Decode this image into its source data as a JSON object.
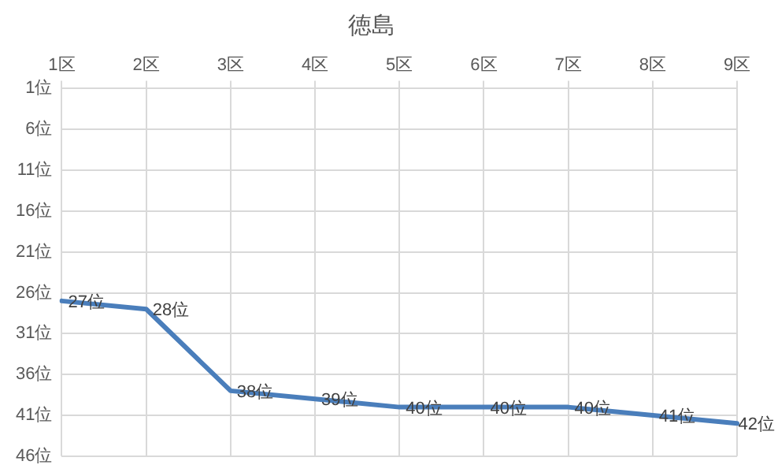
{
  "chart_data": {
    "type": "line",
    "title": "徳島",
    "categories": [
      "1区",
      "2区",
      "3区",
      "4区",
      "5区",
      "6区",
      "7区",
      "8区",
      "9区"
    ],
    "series": [
      {
        "color": "#4a7ebb",
        "values": [
          27,
          28,
          38,
          39,
          40,
          40,
          40,
          41,
          42
        ],
        "value_labels": [
          "27位",
          "28位",
          "38位",
          "39位",
          "40位",
          "40位",
          "40位",
          "41位",
          "42位"
        ]
      }
    ],
    "ylim": [
      46,
      1
    ],
    "yticks": [
      {
        "value": 1,
        "label": "1位"
      },
      {
        "value": 6,
        "label": "6位"
      },
      {
        "value": 11,
        "label": "11位"
      },
      {
        "value": 16,
        "label": "16位"
      },
      {
        "value": 21,
        "label": "21位"
      },
      {
        "value": 26,
        "label": "26位"
      },
      {
        "value": 31,
        "label": "31位"
      },
      {
        "value": 36,
        "label": "36位"
      },
      {
        "value": 41,
        "label": "41位"
      },
      {
        "value": 46,
        "label": "46位"
      }
    ],
    "grid": true,
    "legend": false,
    "marker": "none",
    "line_style": "solid"
  }
}
